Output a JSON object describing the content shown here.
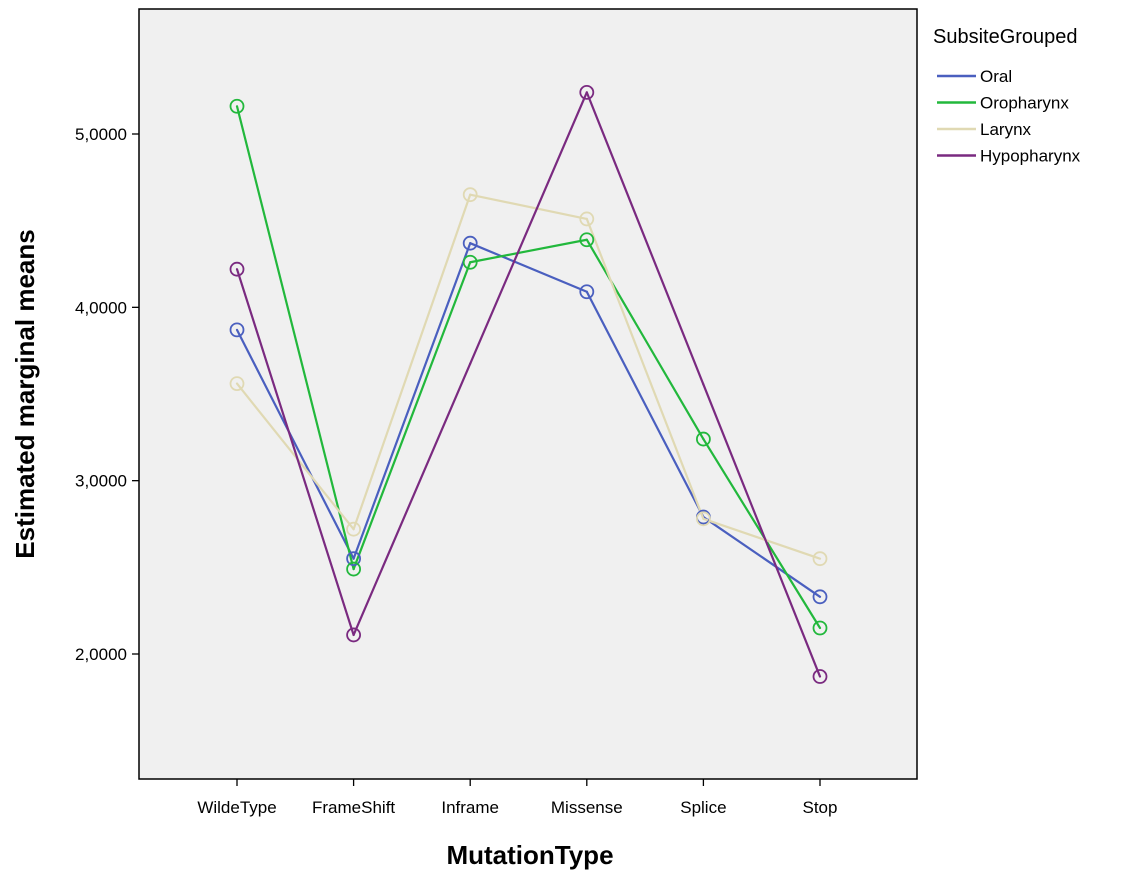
{
  "chart_data": {
    "type": "line",
    "title": "",
    "xlabel": "MutationType",
    "ylabel": "Estimated marginal means",
    "categories": [
      "WildeType",
      "FrameShift",
      "Inframe",
      "Missense",
      "Splice",
      "Stop"
    ],
    "yticks": [
      "2,0000",
      "3,0000",
      "4,0000",
      "5,0000"
    ],
    "ytick_values": [
      2.0,
      3.0,
      4.0,
      5.0
    ],
    "ylim": [
      1.35,
      5.75
    ],
    "grid": false,
    "plot_background": "#f0f0f0",
    "legend_title": "SubsiteGrouped",
    "legend_position": "right-top",
    "series": [
      {
        "name": "Oral",
        "color": "#4a5fbf",
        "values": [
          3.87,
          2.55,
          4.37,
          4.09,
          2.79,
          2.33
        ]
      },
      {
        "name": "Oropharynx",
        "color": "#22b83c",
        "values": [
          5.16,
          2.49,
          4.26,
          4.39,
          3.24,
          2.15
        ]
      },
      {
        "name": "Larynx",
        "color": "#e0d9b3",
        "values": [
          3.56,
          2.72,
          4.65,
          4.51,
          2.78,
          2.55
        ]
      },
      {
        "name": "Hypopharynx",
        "color": "#7a2a80",
        "values": [
          4.22,
          2.11,
          null,
          5.24,
          null,
          1.87
        ]
      }
    ]
  }
}
